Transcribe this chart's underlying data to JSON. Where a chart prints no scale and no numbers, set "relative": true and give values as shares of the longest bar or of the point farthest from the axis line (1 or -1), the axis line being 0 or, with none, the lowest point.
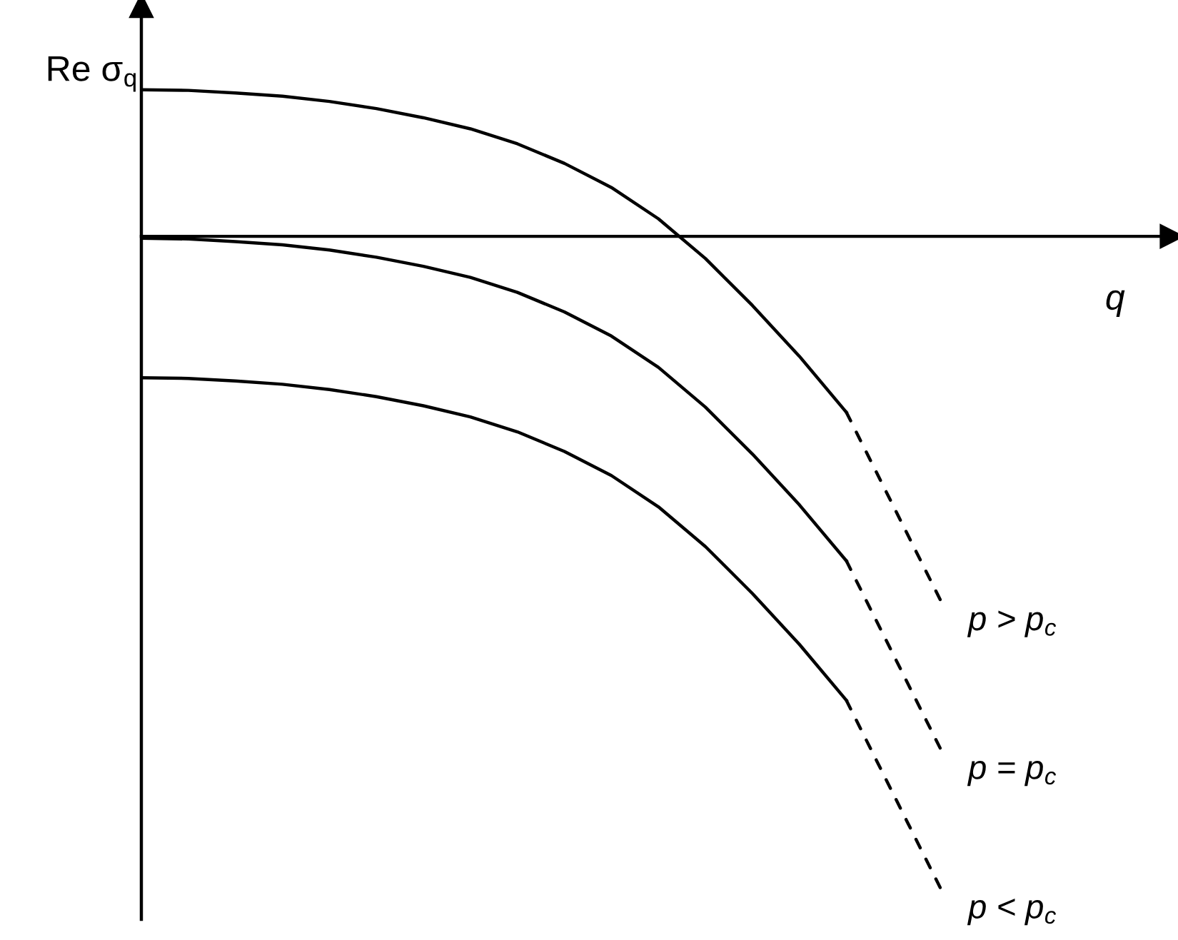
{
  "chart_data": {
    "type": "line",
    "relative": true,
    "xlabel": "q",
    "ylabel": "Re σ$_{q}$",
    "categories": [
      null,
      null,
      null,
      null,
      null,
      null,
      null,
      null,
      null,
      null,
      null,
      null,
      null,
      null,
      null,
      null,
      null,
      null
    ],
    "series": [
      {
        "color": "#000000",
        "line_style": "solid",
        "values": [
          0.225,
          0.224,
          0.22,
          0.215,
          0.207,
          0.196,
          0.182,
          0.165,
          0.142,
          0.112,
          0.075,
          0.027,
          -0.034,
          -0.106,
          -0.184,
          -0.27,
          null,
          null
        ]
      },
      {
        "name": "p > p$_{c}$",
        "color": "#000000",
        "line_style": "dashed",
        "values": [
          null,
          null,
          null,
          null,
          null,
          null,
          null,
          null,
          null,
          null,
          null,
          null,
          null,
          null,
          null,
          -0.27,
          -0.414,
          -0.558
        ]
      },
      {
        "color": "#000000",
        "line_style": "solid",
        "values": [
          -0.003,
          -0.004,
          -0.008,
          -0.013,
          -0.021,
          -0.032,
          -0.046,
          -0.063,
          -0.086,
          -0.116,
          -0.153,
          -0.201,
          -0.262,
          -0.334,
          -0.412,
          -0.498,
          null,
          null
        ]
      },
      {
        "name": "p = p$_{c}$",
        "color": "#000000",
        "line_style": "dashed",
        "values": [
          null,
          null,
          null,
          null,
          null,
          null,
          null,
          null,
          null,
          null,
          null,
          null,
          null,
          null,
          null,
          -0.498,
          -0.642,
          -0.786
        ]
      },
      {
        "color": "#000000",
        "line_style": "solid",
        "values": [
          -0.217,
          -0.218,
          -0.222,
          -0.227,
          -0.235,
          -0.246,
          -0.26,
          -0.277,
          -0.3,
          -0.33,
          -0.367,
          -0.415,
          -0.476,
          -0.548,
          -0.626,
          -0.712,
          null,
          null
        ]
      },
      {
        "name": "p < p$_{c}$",
        "color": "#000000",
        "line_style": "dashed",
        "values": [
          null,
          null,
          null,
          null,
          null,
          null,
          null,
          null,
          null,
          null,
          null,
          null,
          null,
          null,
          null,
          -0.712,
          -0.856,
          -1.0
        ]
      }
    ],
    "legend": false,
    "grid": false
  }
}
